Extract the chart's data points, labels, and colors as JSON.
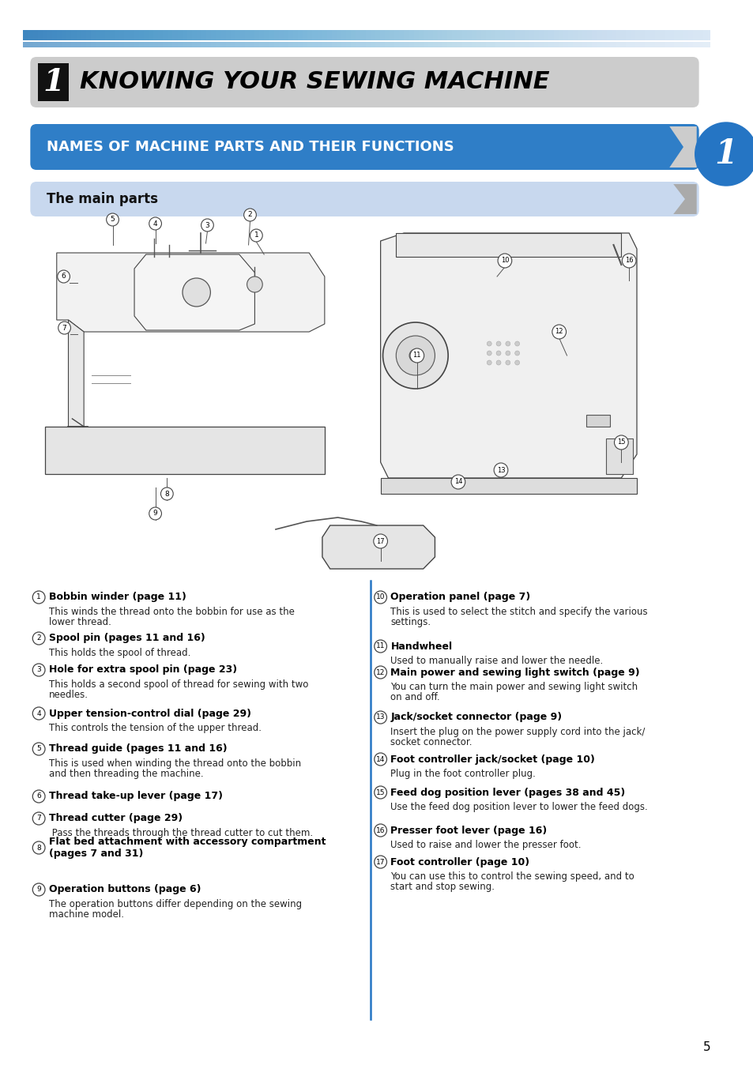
{
  "page_bg": "#ffffff",
  "chapter_bg": "#cccccc",
  "chapter_num": "1",
  "chapter_title": "KNOWING YOUR SEWING MACHINE",
  "section_bg": "#2f7ec7",
  "section_title": "NAMES OF MACHINE PARTS AND THEIR FUNCTIONS",
  "subsection_bg": "#c8d8ee",
  "subsection_title": "The main parts",
  "tab_bg": "#2575c4",
  "tab_text": "1",
  "divider_color": "#2575c4",
  "page_number": "5",
  "stripe1_color": "#5a8ec0",
  "stripe2_color": "#8aaed0",
  "left_items": [
    [
      "1",
      "Bobbin winder (page 11)",
      "This winds the thread onto the bobbin for use as the\nlower thread."
    ],
    [
      "2",
      "Spool pin (pages 11 and 16)",
      "This holds the spool of thread."
    ],
    [
      "3",
      "Hole for extra spool pin (page 23)",
      "This holds a second spool of thread for sewing with two\nneedles."
    ],
    [
      "4",
      "Upper tension-control dial (page 29)",
      "This controls the tension of the upper thread."
    ],
    [
      "5",
      "Thread guide (pages 11 and 16)",
      "This is used when winding the thread onto the bobbin\nand then threading the machine."
    ],
    [
      "6",
      "Thread take-up lever (page 17)",
      ""
    ],
    [
      "7",
      "Thread cutter (page 29)",
      " Pass the threads through the thread cutter to cut them."
    ],
    [
      "8",
      "Flat bed attachment with accessory compartment\n(pages 7 and 31)",
      ""
    ],
    [
      "9",
      "Operation buttons (page 6)",
      "The operation buttons differ depending on the sewing\nmachine model."
    ]
  ],
  "right_items": [
    [
      "10",
      "Operation panel (page 7)",
      "This is used to select the stitch and specify the various\nsettings."
    ],
    [
      "11",
      "Handwheel",
      "Used to manually raise and lower the needle."
    ],
    [
      "12",
      "Main power and sewing light switch (page 9)",
      "You can turn the main power and sewing light switch\non and off."
    ],
    [
      "13",
      "Jack/socket connector (page 9)",
      "Insert the plug on the power supply cord into the jack/\nsocket connector."
    ],
    [
      "14",
      "Foot controller jack/socket (page 10)",
      "Plug in the foot controller plug."
    ],
    [
      "15",
      "Feed dog position lever (pages 38 and 45)",
      "Use the feed dog position lever to lower the feed dogs."
    ],
    [
      "16",
      "Presser foot lever (page 16)",
      "Used to raise and lower the presser foot."
    ],
    [
      "17",
      "Foot controller (page 10)",
      "You can use this to control the sewing speed, and to\nstart and stop sewing."
    ]
  ]
}
